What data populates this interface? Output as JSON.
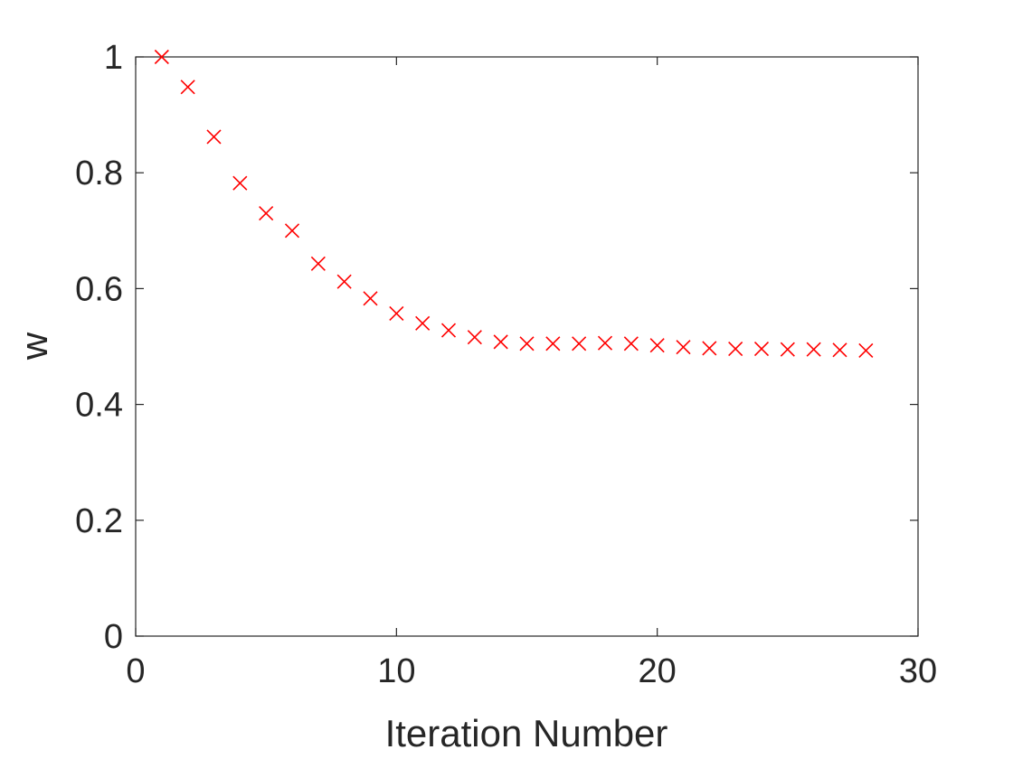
{
  "chart_data": {
    "type": "scatter",
    "title": "",
    "xlabel": "Iteration Number",
    "ylabel": "w",
    "xlim": [
      0,
      30
    ],
    "ylim": [
      0,
      1
    ],
    "x_ticks": [
      0,
      10,
      20,
      30
    ],
    "y_ticks": [
      0,
      0.2,
      0.4,
      0.6,
      0.8,
      1
    ],
    "x_tick_labels": [
      "0",
      "10",
      "20",
      "30"
    ],
    "y_tick_labels": [
      "0",
      "0.2",
      "0.4",
      "0.6",
      "0.8",
      "1"
    ],
    "grid": false,
    "box": true,
    "marker": "x",
    "marker_color": "#ff0000",
    "series": [
      {
        "x": [
          1,
          2,
          3,
          4,
          5,
          6,
          7,
          8,
          9,
          10,
          11,
          12,
          13,
          14,
          15,
          16,
          17,
          18,
          19,
          20,
          21,
          22,
          23,
          24,
          25,
          26,
          27,
          28
        ],
        "y": [
          1.0,
          0.948,
          0.862,
          0.782,
          0.73,
          0.7,
          0.643,
          0.612,
          0.583,
          0.557,
          0.54,
          0.528,
          0.516,
          0.508,
          0.505,
          0.505,
          0.505,
          0.506,
          0.505,
          0.502,
          0.499,
          0.497,
          0.496,
          0.496,
          0.495,
          0.495,
          0.494,
          0.493
        ]
      }
    ]
  }
}
